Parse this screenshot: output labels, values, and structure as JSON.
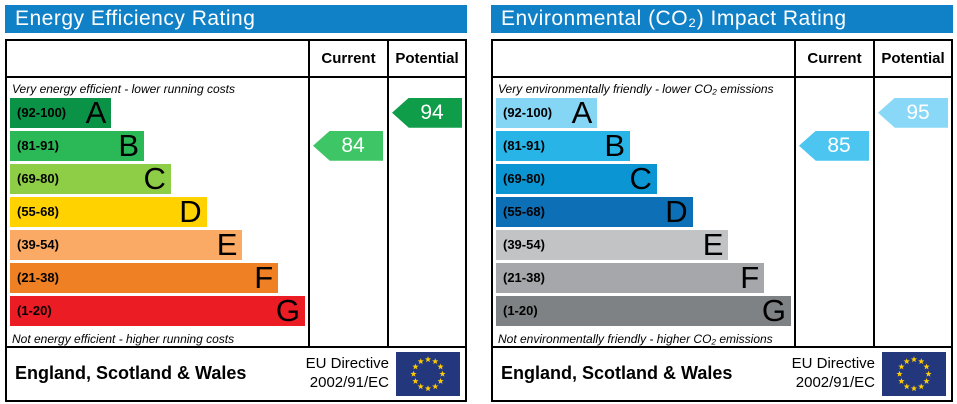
{
  "panels": [
    {
      "title": "Energy Efficiency Rating",
      "columns": {
        "current": "Current",
        "potential": "Potential"
      },
      "top_note": "Very energy efficient - lower running costs",
      "bottom_note": "Not energy efficient - higher running costs",
      "bands": [
        {
          "range": "(92-100)",
          "letter": "A",
          "color": "#0a9246",
          "width_pct": 34
        },
        {
          "range": "(81-91)",
          "letter": "B",
          "color": "#2bb857",
          "width_pct": 45
        },
        {
          "range": "(69-80)",
          "letter": "C",
          "color": "#8ece46",
          "width_pct": 54
        },
        {
          "range": "(55-68)",
          "letter": "D",
          "color": "#ffd200",
          "width_pct": 66
        },
        {
          "range": "(39-54)",
          "letter": "E",
          "color": "#faaa64",
          "width_pct": 78
        },
        {
          "range": "(21-38)",
          "letter": "F",
          "color": "#ef8023",
          "width_pct": 90
        },
        {
          "range": "(1-20)",
          "letter": "G",
          "color": "#ec1c24",
          "width_pct": 99
        }
      ],
      "current": {
        "value": "84",
        "band_index": 1,
        "color": "#3ec666"
      },
      "potential": {
        "value": "94",
        "band_index": 0,
        "color": "#0f9d49"
      },
      "footer": {
        "region": "England, Scotland & Wales",
        "directive_line1": "EU Directive",
        "directive_line2": "2002/91/EC"
      }
    },
    {
      "title": "Environmental (CO₂) Impact Rating",
      "columns": {
        "current": "Current",
        "potential": "Potential"
      },
      "top_note": "Very environmentally friendly - lower CO₂ emissions",
      "bottom_note": "Not environmentally friendly - higher CO₂ emissions",
      "bands": [
        {
          "range": "(92-100)",
          "letter": "A",
          "color": "#85d5f5",
          "width_pct": 34
        },
        {
          "range": "(81-91)",
          "letter": "B",
          "color": "#29b4e8",
          "width_pct": 45
        },
        {
          "range": "(69-80)",
          "letter": "C",
          "color": "#0b95d3",
          "width_pct": 54
        },
        {
          "range": "(55-68)",
          "letter": "D",
          "color": "#0d6fb5",
          "width_pct": 66
        },
        {
          "range": "(39-54)",
          "letter": "E",
          "color": "#c2c3c5",
          "width_pct": 78
        },
        {
          "range": "(21-38)",
          "letter": "F",
          "color": "#a6a7aa",
          "width_pct": 90
        },
        {
          "range": "(1-20)",
          "letter": "G",
          "color": "#7f8284",
          "width_pct": 99
        }
      ],
      "current": {
        "value": "85",
        "band_index": 1,
        "color": "#4cc5f1"
      },
      "potential": {
        "value": "95",
        "band_index": 0,
        "color": "#8ad8f7"
      },
      "footer": {
        "region": "England, Scotland & Wales",
        "directive_line1": "EU Directive",
        "directive_line2": "2002/91/EC"
      }
    }
  ],
  "colors": {
    "header_bar": "#1080c7",
    "border": "#000000",
    "eu_flag_blue": "#23377d",
    "eu_flag_star": "#ffcc00"
  },
  "chart_data": [
    {
      "type": "bar",
      "title": "Energy Efficiency Rating",
      "categories": [
        "A (92-100)",
        "B (81-91)",
        "C (69-80)",
        "D (55-68)",
        "E (39-54)",
        "F (21-38)",
        "G (1-20)"
      ],
      "values": [
        34,
        45,
        54,
        66,
        78,
        90,
        99
      ],
      "values_unit": "band bar length, % of chart column width",
      "current_rating": 84,
      "current_band": "B",
      "potential_rating": 94,
      "potential_band": "A",
      "top_annotation": "Very energy efficient - lower running costs",
      "bottom_annotation": "Not energy efficient - higher running costs",
      "footer": "England, Scotland & Wales — EU Directive 2002/91/EC"
    },
    {
      "type": "bar",
      "title": "Environmental (CO₂) Impact Rating",
      "categories": [
        "A (92-100)",
        "B (81-91)",
        "C (69-80)",
        "D (55-68)",
        "E (39-54)",
        "F (21-38)",
        "G (1-20)"
      ],
      "values": [
        34,
        45,
        54,
        66,
        78,
        90,
        99
      ],
      "values_unit": "band bar length, % of chart column width",
      "current_rating": 85,
      "current_band": "B",
      "potential_rating": 95,
      "potential_band": "A",
      "top_annotation": "Very environmentally friendly - lower CO₂ emissions",
      "bottom_annotation": "Not environmentally friendly - higher CO₂ emissions",
      "footer": "England, Scotland & Wales — EU Directive 2002/91/EC"
    }
  ]
}
